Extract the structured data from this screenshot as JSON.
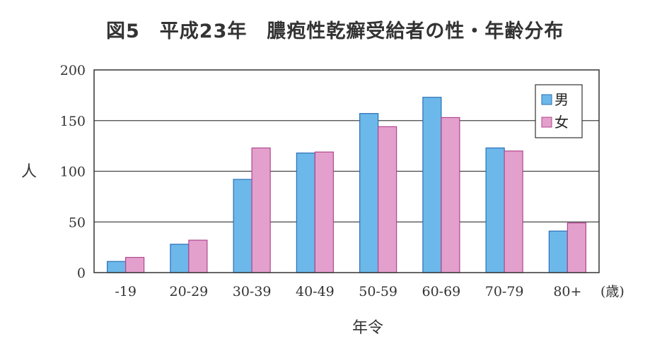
{
  "chart_data": {
    "type": "bar",
    "title": "図5　平成23年　膿疱性乾癬受給者の性・年齢分布",
    "ylabel": "人",
    "xlabel": "年令",
    "x_unit_label": "(歳)",
    "categories": [
      "-19",
      "20-29",
      "30-39",
      "40-49",
      "50-59",
      "60-69",
      "70-79",
      "80+"
    ],
    "ylim": [
      0,
      200
    ],
    "yticks": [
      "0",
      "50",
      "100",
      "150",
      "200"
    ],
    "grid": true,
    "legend_position": "top-right",
    "series": [
      {
        "name": "男",
        "color": "#6cb8ea",
        "values": [
          11,
          28,
          92,
          118,
          157,
          173,
          123,
          41
        ]
      },
      {
        "name": "女",
        "color": "#e4a0cc",
        "values": [
          15,
          32,
          123,
          119,
          144,
          153,
          120,
          49
        ]
      }
    ]
  }
}
